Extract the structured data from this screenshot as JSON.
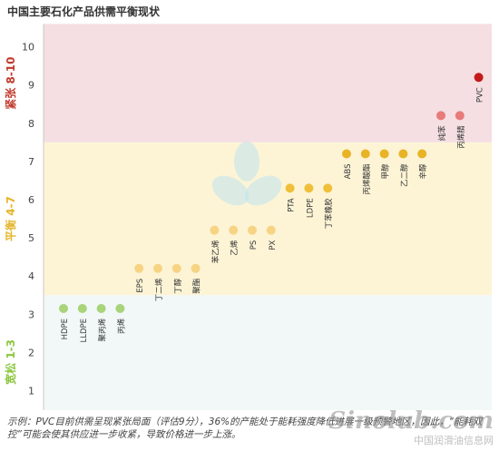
{
  "chart_data": {
    "type": "scatter",
    "title": "中国主要石化产品供需平衡现状",
    "ylim": [
      0,
      10.6
    ],
    "yticks": [
      1,
      2,
      3,
      4,
      5,
      6,
      7,
      8,
      9,
      10
    ],
    "grid": false,
    "bands": [
      {
        "label": "宽松 1-3",
        "range": [
          0,
          3.5
        ],
        "color": "#f2f8f8",
        "label_color": "#8cc63f"
      },
      {
        "label": "平衡 4-7",
        "range": [
          3.5,
          7.5
        ],
        "color": "#fdf4d6",
        "label_color": "#e4b52a"
      },
      {
        "label": "紧张 8-10",
        "range": [
          7.5,
          10.6
        ],
        "color": "#f5dfe3",
        "label_color": "#c0392b"
      }
    ],
    "points": [
      {
        "name": "HDPE",
        "y": 3.15,
        "color": "#a8d47a"
      },
      {
        "name": "LLDPE",
        "y": 3.15,
        "color": "#a8d47a"
      },
      {
        "name": "聚丙烯",
        "y": 3.15,
        "color": "#a8d47a"
      },
      {
        "name": "丙烯",
        "y": 3.15,
        "color": "#a8d47a"
      },
      {
        "name": "EPS",
        "y": 4.2,
        "color": "#f7d483"
      },
      {
        "name": "丁二烯",
        "y": 4.2,
        "color": "#f7d483"
      },
      {
        "name": "丁醇",
        "y": 4.2,
        "color": "#f7d483"
      },
      {
        "name": "聚酯",
        "y": 4.2,
        "color": "#f7d483"
      },
      {
        "name": "苯乙烯",
        "y": 5.2,
        "color": "#f7d483"
      },
      {
        "name": "乙烯",
        "y": 5.2,
        "color": "#f7d483"
      },
      {
        "name": "PS",
        "y": 5.2,
        "color": "#f7d483"
      },
      {
        "name": "PX",
        "y": 5.2,
        "color": "#f7d483"
      },
      {
        "name": "PTA",
        "y": 6.3,
        "color": "#f0bf3a"
      },
      {
        "name": "LDPE",
        "y": 6.3,
        "color": "#f0bf3a"
      },
      {
        "name": "丁苯橡胶",
        "y": 6.3,
        "color": "#f0bf3a"
      },
      {
        "name": "ABS",
        "y": 7.2,
        "color": "#e8b325"
      },
      {
        "name": "丙烯酸酯",
        "y": 7.2,
        "color": "#e8b325"
      },
      {
        "name": "甲醇",
        "y": 7.2,
        "color": "#e8b325"
      },
      {
        "name": "乙二醇",
        "y": 7.2,
        "color": "#e8b325"
      },
      {
        "name": "辛醇",
        "y": 7.2,
        "color": "#e8b325"
      },
      {
        "name": "纯苯",
        "y": 8.2,
        "color": "#e87a7a"
      },
      {
        "name": "丙烯腈",
        "y": 8.2,
        "color": "#e87a7a"
      },
      {
        "name": "PVC",
        "y": 9.2,
        "color": "#c41a1a"
      }
    ]
  },
  "footnote": "示例：PVC目前供需呈现紧张局面（评估9分），36%的产能处于能耗强度降低进展一级预警地区，因此，“能耗双控”可能会使其供应进一步收紧，导致价格进一步上涨。",
  "watermark": {
    "logo": "Sinolub.com",
    "sub": "中国润滑油信息网"
  }
}
